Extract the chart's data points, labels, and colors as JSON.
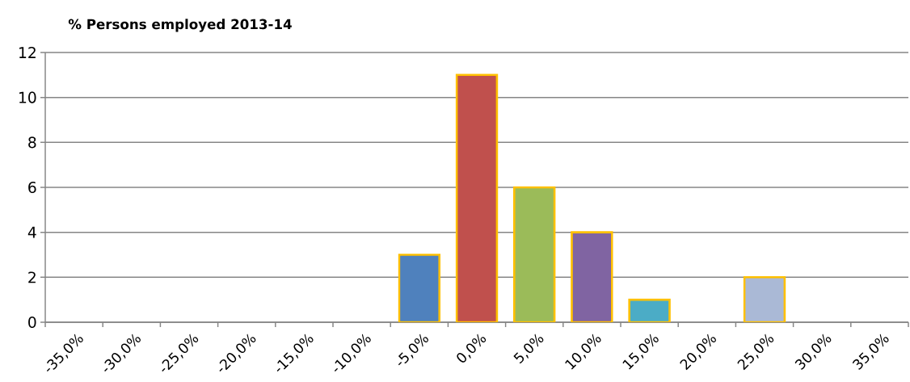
{
  "chart_data": {
    "type": "bar",
    "title": "% Persons employed 2013-14",
    "categories": [
      "-35,0%",
      "-30,0%",
      "-25,0%",
      "-20,0%",
      "-15,0%",
      "-10,0%",
      "-5,0%",
      "0,0%",
      "5,0%",
      "10,0%",
      "15,0%",
      "20,0%",
      "25,0%",
      "30,0%",
      "35,0%"
    ],
    "values": [
      0,
      0,
      0,
      0,
      0,
      0,
      3,
      11,
      6,
      4,
      1,
      0,
      2,
      0,
      0
    ],
    "colors": [
      "#4f81bd",
      "#c0504d",
      "#9bbb59",
      "#8064a2",
      "#4bacc6",
      "#f79646",
      "#4f81bd",
      "#c0504d",
      "#9bbb59",
      "#8064a2",
      "#4bacc6",
      "#f79646",
      "#aab9d6",
      "#d99694",
      "#c3d69b"
    ],
    "ylim": [
      0,
      12
    ],
    "yticks": [
      0,
      2,
      4,
      6,
      8,
      10,
      12
    ],
    "grid": "y"
  }
}
